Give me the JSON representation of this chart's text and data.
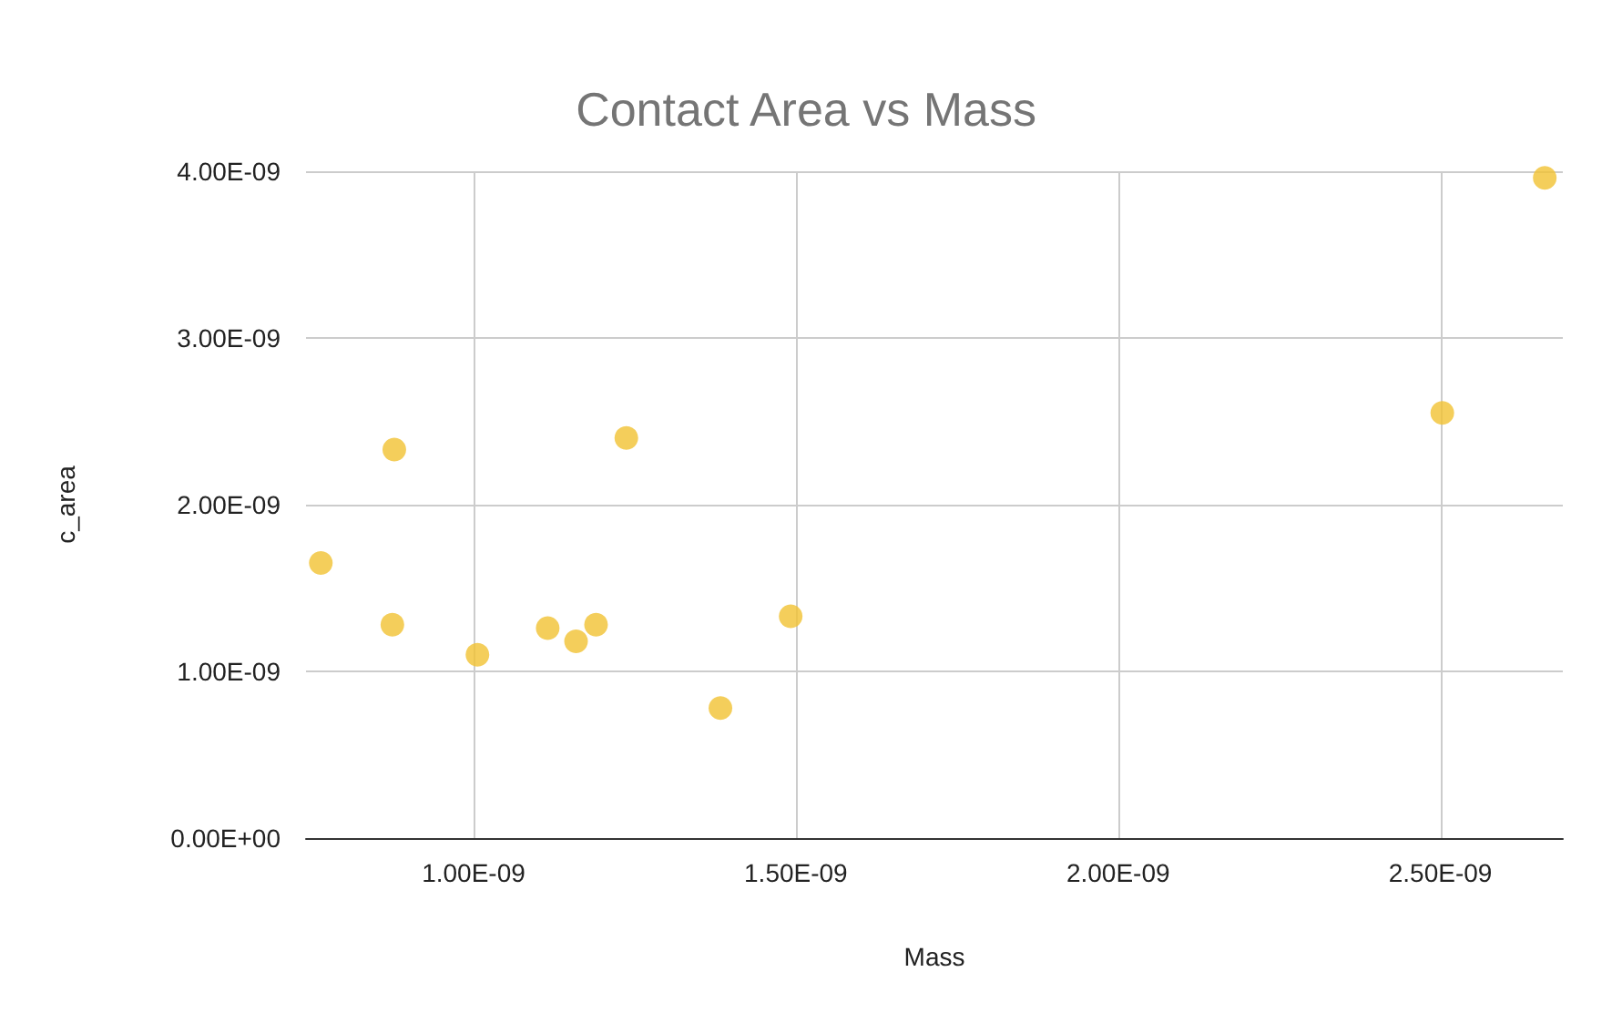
{
  "chart_data": {
    "type": "scatter",
    "title": "Contact Area vs Mass",
    "xlabel": "Mass",
    "ylabel": "c_area",
    "x": [
      7.63e-10,
      8.74e-10,
      8.77e-10,
      1.006e-09,
      1.115e-09,
      1.159e-09,
      1.19e-09,
      1.237e-09,
      1.383e-09,
      1.492e-09,
      2.503e-09,
      2.662e-09
    ],
    "series": [
      {
        "color": "#f1c232",
        "values": [
          1.65e-09,
          1.28e-09,
          2.33e-09,
          1.1e-09,
          1.26e-09,
          1.18e-09,
          1.28e-09,
          2.4e-09,
          7.8e-10,
          1.33e-09,
          2.55e-09,
          3.96e-09
        ]
      }
    ],
    "xlim": [
      7.4e-10,
      2.69e-09
    ],
    "xticks": [
      {
        "value": 1e-09,
        "label": "1.00E-09"
      },
      {
        "value": 1.5e-09,
        "label": "1.50E-09"
      },
      {
        "value": 2e-09,
        "label": "2.00E-09"
      },
      {
        "value": 2.5e-09,
        "label": "2.50E-09"
      }
    ],
    "ylim": [
      0,
      4e-09
    ],
    "yticks": [
      {
        "value": 0,
        "label": "0.00E+00"
      },
      {
        "value": 1e-09,
        "label": "1.00E-09"
      },
      {
        "value": 2e-09,
        "label": "2.00E-09"
      },
      {
        "value": 3e-09,
        "label": "3.00E-09"
      },
      {
        "value": 4e-09,
        "label": "4.00E-09"
      }
    ],
    "grid": true,
    "marker": "circle"
  }
}
